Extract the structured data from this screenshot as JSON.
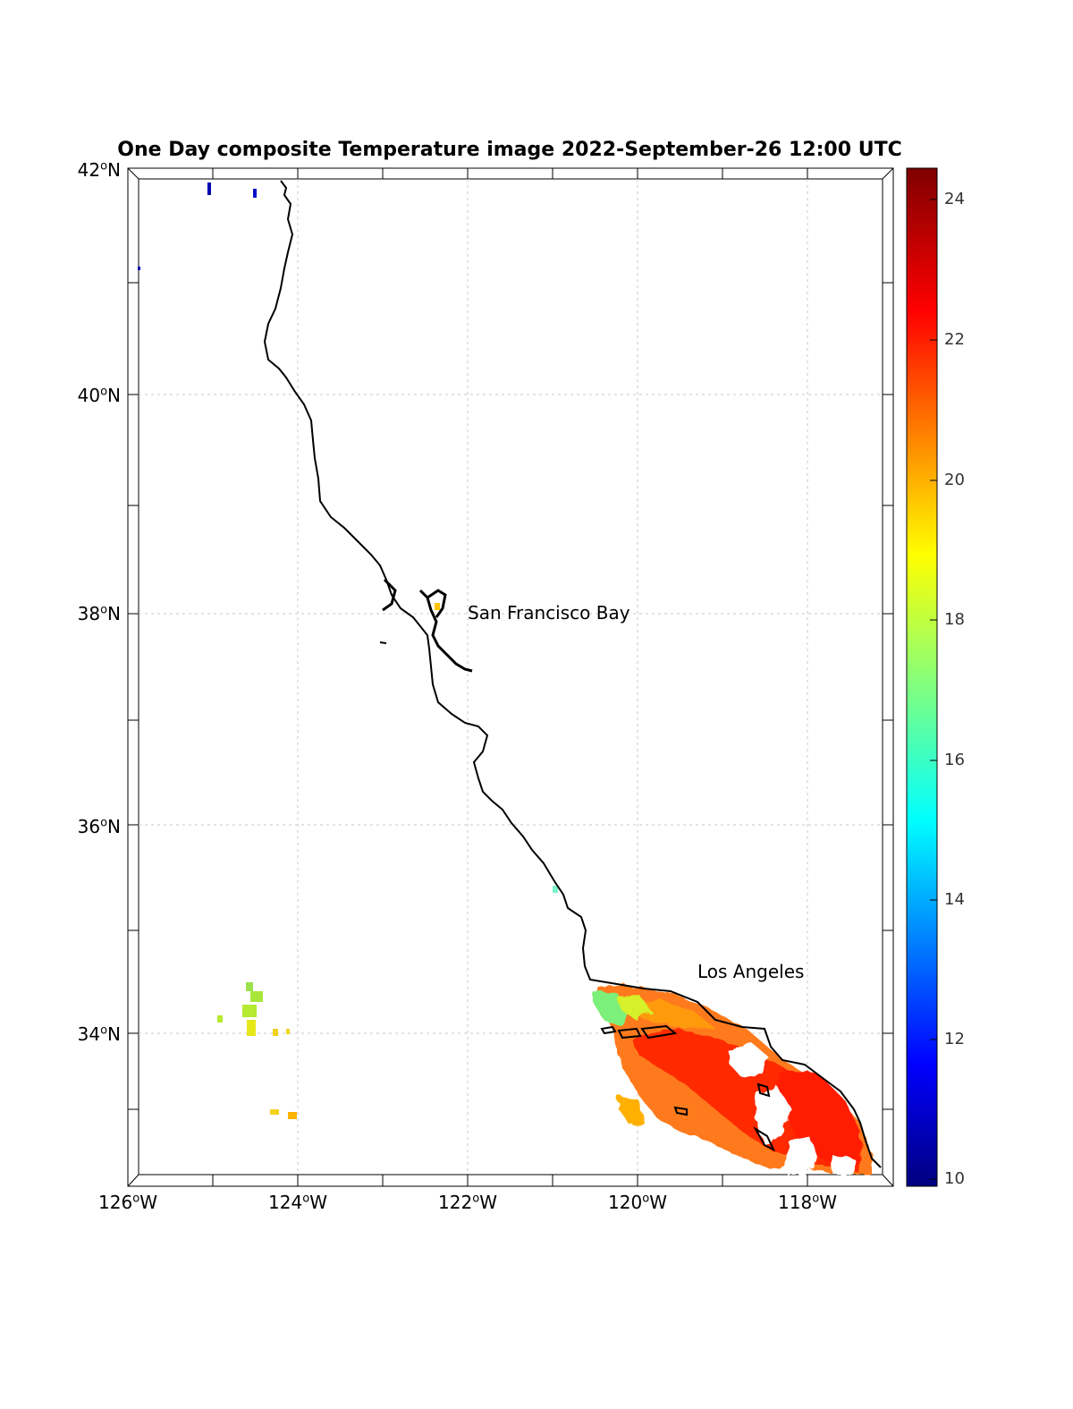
{
  "title": "One Day composite Temperature image 2022-September-26 12:00 UTC",
  "map": {
    "lon_labels": [
      {
        "deg": "126",
        "hem": "W"
      },
      {
        "deg": "124",
        "hem": "W"
      },
      {
        "deg": "122",
        "hem": "W"
      },
      {
        "deg": "120",
        "hem": "W"
      },
      {
        "deg": "118",
        "hem": "W"
      }
    ],
    "lat_labels": [
      {
        "deg": "42",
        "hem": "N"
      },
      {
        "deg": "40",
        "hem": "N"
      },
      {
        "deg": "38",
        "hem": "N"
      },
      {
        "deg": "36",
        "hem": "N"
      },
      {
        "deg": "34",
        "hem": "N"
      }
    ],
    "places": {
      "sf": "San Francisco Bay",
      "la": "Los Angeles"
    },
    "colors": {
      "coastline": "#000000",
      "grid": "#bbbbbb"
    }
  },
  "colorbar": {
    "min": 10,
    "max": 24.5,
    "ticks": [
      "24",
      "22",
      "20",
      "18",
      "16",
      "14",
      "12",
      "10"
    ],
    "colormap": "jet"
  }
}
